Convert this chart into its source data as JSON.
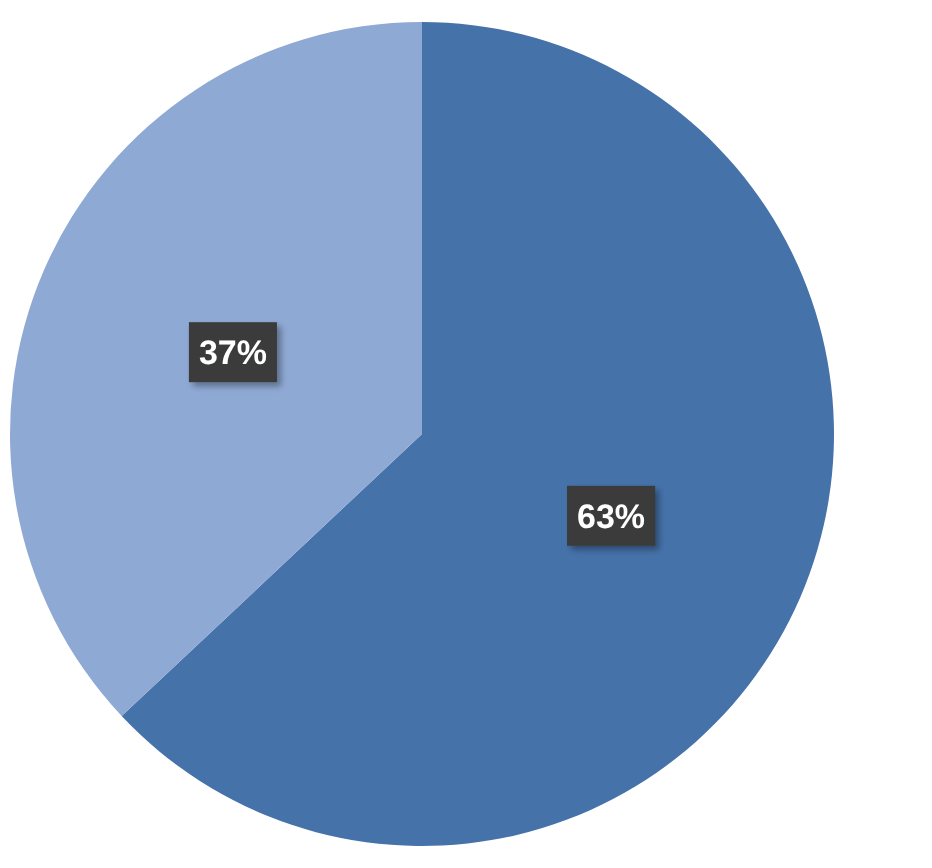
{
  "chart_data": {
    "type": "pie",
    "categories": [
      null,
      null
    ],
    "values": [
      63,
      37
    ],
    "colors": [
      "#4672aa",
      "#8ea9d4"
    ],
    "value_labels": [
      "63%",
      "37%"
    ]
  }
}
